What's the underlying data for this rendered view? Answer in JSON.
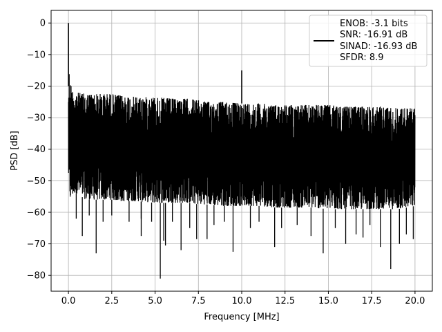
{
  "chart_data": {
    "type": "line",
    "xlabel": "Frequency [MHz]",
    "ylabel": "PSD [dB]",
    "xlim": [
      -1.0,
      21.0
    ],
    "ylim": [
      -85.0,
      4.0
    ],
    "xticks": [
      0.0,
      2.5,
      5.0,
      7.5,
      10.0,
      12.5,
      15.0,
      17.5,
      20.0
    ],
    "xtick_labels": [
      "0.0",
      "2.5",
      "5.0",
      "7.5",
      "10.0",
      "12.5",
      "15.0",
      "17.5",
      "20.0"
    ],
    "yticks": [
      0,
      -10,
      -20,
      -30,
      -40,
      -50,
      -60,
      -70,
      -80
    ],
    "ytick_labels": [
      "0",
      "−10",
      "−20",
      "−30",
      "−40",
      "−50",
      "−60",
      "−70",
      "−80"
    ],
    "grid": true,
    "legend_position": "top-right",
    "legend_lines": [
      "ENOB: -3.1 bits",
      "SNR: -16.91 dB",
      "SINAD: -16.93 dB",
      "SFDR: 8.9"
    ],
    "series_color": "#000000",
    "envelope": {
      "x": [
        0.0,
        0.05,
        0.1,
        0.2,
        0.35,
        0.5,
        1.0,
        2.0,
        2.5,
        3.0,
        4.0,
        5.0,
        6.0,
        7.0,
        7.5,
        8.0,
        9.0,
        9.9,
        10.1,
        11.0,
        12.0,
        12.5,
        13.0,
        14.0,
        15.0,
        16.0,
        17.0,
        17.5,
        18.0,
        19.0,
        20.0
      ],
      "upper": [
        -20,
        -15,
        -18,
        -21,
        -22,
        -22,
        -22.5,
        -22.5,
        -22.5,
        -23,
        -23.5,
        -23.5,
        -24,
        -24,
        -24.5,
        -25,
        -25,
        -25.5,
        -25.5,
        -25.5,
        -26,
        -26,
        -26,
        -26,
        -26,
        -26.5,
        -26.5,
        -26.5,
        -26.5,
        -27,
        -27
      ],
      "lower": [
        -48,
        -55,
        -56,
        -55,
        -54,
        -54,
        -56,
        -56,
        -56,
        -56.5,
        -56.5,
        -57,
        -57,
        -57,
        -57.5,
        -57.5,
        -58,
        -58,
        -58,
        -58,
        -58.5,
        -58.5,
        -58.5,
        -58.5,
        -59,
        -59,
        -59,
        -59,
        -59,
        -59,
        -58
      ]
    },
    "spikes": [
      {
        "x": 0.0,
        "y": 0.0
      },
      {
        "x": 10.0,
        "y": -15.0
      }
    ],
    "dips": [
      {
        "x": 0.45,
        "y": -62
      },
      {
        "x": 0.8,
        "y": -67.5
      },
      {
        "x": 1.2,
        "y": -61
      },
      {
        "x": 1.6,
        "y": -73
      },
      {
        "x": 2.0,
        "y": -63
      },
      {
        "x": 2.5,
        "y": -61
      },
      {
        "x": 3.5,
        "y": -63
      },
      {
        "x": 4.2,
        "y": -62
      },
      {
        "x": 4.2,
        "y": -67.5
      },
      {
        "x": 4.8,
        "y": -63
      },
      {
        "x": 5.3,
        "y": -81
      },
      {
        "x": 5.5,
        "y": -69
      },
      {
        "x": 5.6,
        "y": -70.5
      },
      {
        "x": 6.0,
        "y": -63
      },
      {
        "x": 6.5,
        "y": -72
      },
      {
        "x": 7.0,
        "y": -65
      },
      {
        "x": 7.4,
        "y": -68.5
      },
      {
        "x": 8.0,
        "y": -68.5
      },
      {
        "x": 8.4,
        "y": -64
      },
      {
        "x": 9.0,
        "y": -63
      },
      {
        "x": 9.5,
        "y": -72.5
      },
      {
        "x": 10.5,
        "y": -65
      },
      {
        "x": 11.0,
        "y": -63
      },
      {
        "x": 11.9,
        "y": -71
      },
      {
        "x": 12.3,
        "y": -65
      },
      {
        "x": 13.2,
        "y": -64
      },
      {
        "x": 14.0,
        "y": -67.5
      },
      {
        "x": 14.7,
        "y": -73
      },
      {
        "x": 15.4,
        "y": -65
      },
      {
        "x": 16.0,
        "y": -70
      },
      {
        "x": 16.6,
        "y": -67
      },
      {
        "x": 17.0,
        "y": -68
      },
      {
        "x": 17.4,
        "y": -64
      },
      {
        "x": 18.0,
        "y": -71
      },
      {
        "x": 18.6,
        "y": -78
      },
      {
        "x": 19.1,
        "y": -70
      },
      {
        "x": 19.5,
        "y": -67
      },
      {
        "x": 19.9,
        "y": -68.5
      }
    ]
  }
}
